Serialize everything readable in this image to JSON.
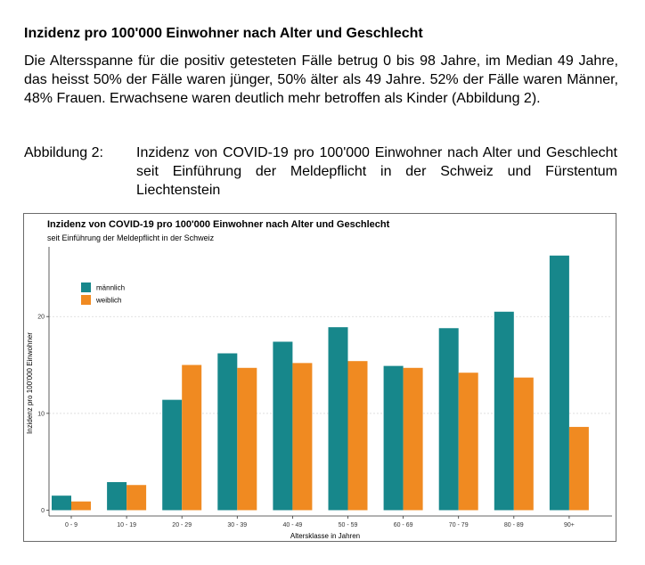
{
  "heading": "Inzidenz pro 100'000 Einwohner nach Alter und Geschlecht",
  "paragraph": "Die Altersspanne für die positiv getesteten Fälle betrug 0 bis 98 Jahre, im Median 49 Jahre, das heisst 50% der Fälle waren jünger, 50% älter als 49 Jahre. 52% der Fälle waren Männer, 48% Frauen. Erwachsene waren deutlich mehr betroffen als Kinder (Abbildung 2).",
  "figure": {
    "label": "Abbildung 2:",
    "caption": "Inzidenz von COVID-19 pro 100'000 Einwohner nach Alter und Geschlecht seit Einführung der Meldepflicht in der Schweiz und Fürstentum Liechtenstein"
  },
  "colors": {
    "male": "#17878b",
    "female": "#f08a21",
    "grid": "#d6d6d6"
  },
  "chart_data": {
    "type": "bar",
    "title": "Inzidenz von COVID-19 pro 100'000 Einwohner nach Alter und Geschlecht",
    "subtitle": "seit Einführung der Meldepflicht in der Schweiz",
    "xlabel": "Altersklasse in Jahren",
    "ylabel": "Inzidenz pro 100'000 Einwohner",
    "categories": [
      "0 - 9",
      "10 - 19",
      "20 - 29",
      "30 - 39",
      "40 - 49",
      "50 - 59",
      "60 - 69",
      "70 - 79",
      "80 - 89",
      "90+"
    ],
    "series": [
      {
        "name": "männlich",
        "values": [
          1.5,
          2.9,
          11.4,
          16.2,
          17.4,
          18.9,
          14.9,
          18.8,
          20.5,
          26.3
        ]
      },
      {
        "name": "weiblich",
        "values": [
          0.9,
          2.6,
          15.0,
          14.7,
          15.2,
          15.4,
          14.7,
          14.2,
          13.7,
          8.6
        ]
      }
    ],
    "yticks": [
      0,
      10,
      20
    ],
    "ylim": [
      -0.6,
      27.2
    ],
    "grid": "horizontal dotted",
    "legend_position": "top-left"
  }
}
